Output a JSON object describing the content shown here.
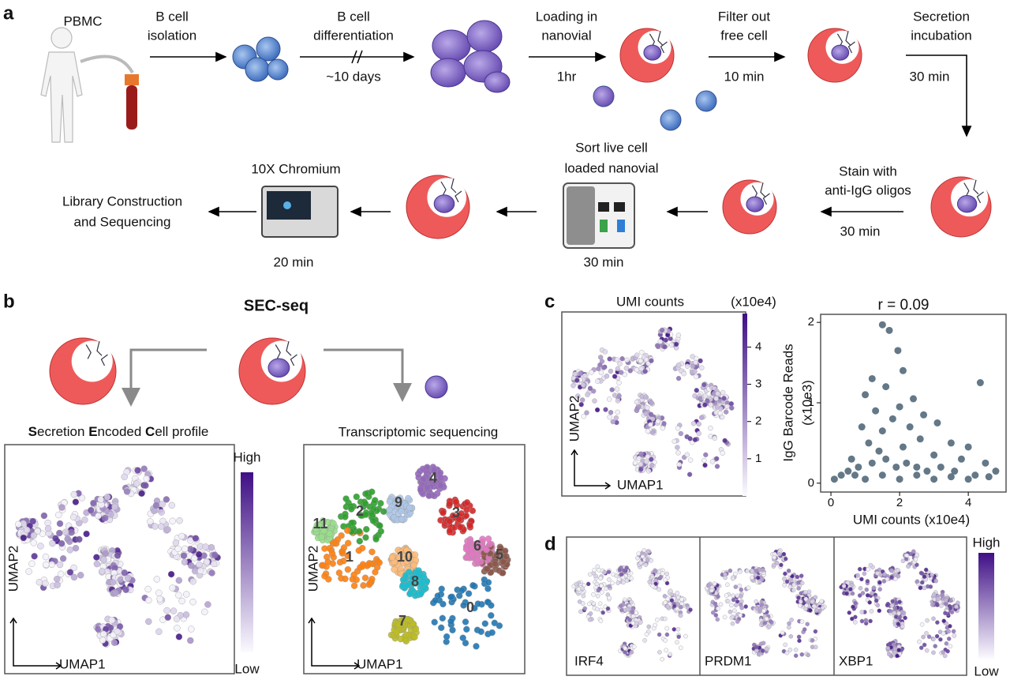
{
  "panel_a": {
    "label": "a",
    "pbmc": "PBMC",
    "isolation": [
      "B cell",
      "isolation"
    ],
    "differentiation": [
      "B cell",
      "differentiation"
    ],
    "differentiation_time": "~10 days",
    "loading": [
      "Loading in",
      "nanovial"
    ],
    "loading_time": "1hr",
    "filter": [
      "Filter out",
      "free cell"
    ],
    "filter_time": "10 min",
    "secretion": [
      "Secretion",
      "incubation"
    ],
    "secretion_time": "30 min",
    "stain": [
      "Stain with",
      "anti-IgG oligos"
    ],
    "stain_time": "30 min",
    "sort": [
      "Sort live cell",
      "loaded nanovial"
    ],
    "sort_time": "30 min",
    "chromium": "10X Chromium",
    "chromium_time": "20 min",
    "library": [
      "Library Construction",
      "and Sequencing"
    ]
  },
  "panel_b": {
    "label": "b",
    "title": "SEC-seq",
    "sec_profile": [
      "S",
      "ecretion ",
      "E",
      "ncoded ",
      "C",
      "ell profile"
    ],
    "transcriptomic": "Transcriptomic sequencing",
    "colorbar_high": "High",
    "colorbar_low": "Low",
    "left_umap": {
      "y": "UMAP2",
      "x": "UMAP1"
    },
    "right_umap": {
      "y": "UMAP2",
      "x": "UMAP1",
      "clusters": [
        "0",
        "1",
        "2",
        "3",
        "4",
        "5",
        "6",
        "7",
        "8",
        "9",
        "10",
        "11"
      ]
    }
  },
  "panel_c": {
    "label": "c",
    "umap": {
      "title": "UMI counts",
      "colorbar_unit": "(x10e4)",
      "colorbar_lim": [
        0,
        4.9
      ],
      "colorbar_ticks": [
        1,
        2,
        3,
        4
      ],
      "y": "UMAP2",
      "x": "UMAP1"
    },
    "scatter": {
      "type": "scatter",
      "title": "r = 0.09",
      "y_label": [
        "IgG Barcode Reads",
        "(x10e3)"
      ],
      "x_label": "UMI counts (x10e4)",
      "color": "#647887",
      "x": [
        1.5,
        1.7,
        1.95,
        4.35,
        1.2,
        2.1,
        1.0,
        2.4,
        1.6,
        1.3,
        2.0,
        2.7,
        3.1,
        1.8,
        0.9,
        2.3,
        1.5,
        3.5,
        4.0,
        1.1,
        2.6,
        0.6,
        1.4,
        2.1,
        3.0,
        3.8,
        4.5,
        4.8,
        0.3,
        0.1,
        0.5,
        0.8,
        1.2,
        1.6,
        1.9,
        2.2,
        2.5,
        2.8,
        3.2,
        3.6,
        4.2,
        4.6,
        1.0,
        2.0,
        3.0,
        4.0,
        1.5,
        2.5,
        3.5,
        0.7
      ],
      "y": [
        1.97,
        1.9,
        1.65,
        1.25,
        1.3,
        1.4,
        1.1,
        1.05,
        1.2,
        0.9,
        0.95,
        0.85,
        0.75,
        0.8,
        0.7,
        0.7,
        0.65,
        0.5,
        0.45,
        0.5,
        0.55,
        0.3,
        0.4,
        0.45,
        0.35,
        0.3,
        0.25,
        0.15,
        0.1,
        0.05,
        0.15,
        0.2,
        0.25,
        0.3,
        0.2,
        0.25,
        0.2,
        0.15,
        0.2,
        0.15,
        0.1,
        0.08,
        0.05,
        0.05,
        0.05,
        0.05,
        0.1,
        0.1,
        0.08,
        0.1
      ],
      "xlim": [
        -0.3,
        5.1
      ],
      "ylim": [
        -0.11,
        2.1
      ],
      "xticks": [
        0,
        2,
        4
      ],
      "yticks": [
        0,
        1,
        2
      ]
    }
  },
  "panel_d": {
    "label": "d",
    "genes": [
      "IRF4",
      "PRDM1",
      "XBP1"
    ],
    "colorbar_high": "High",
    "colorbar_low": "Low"
  }
}
